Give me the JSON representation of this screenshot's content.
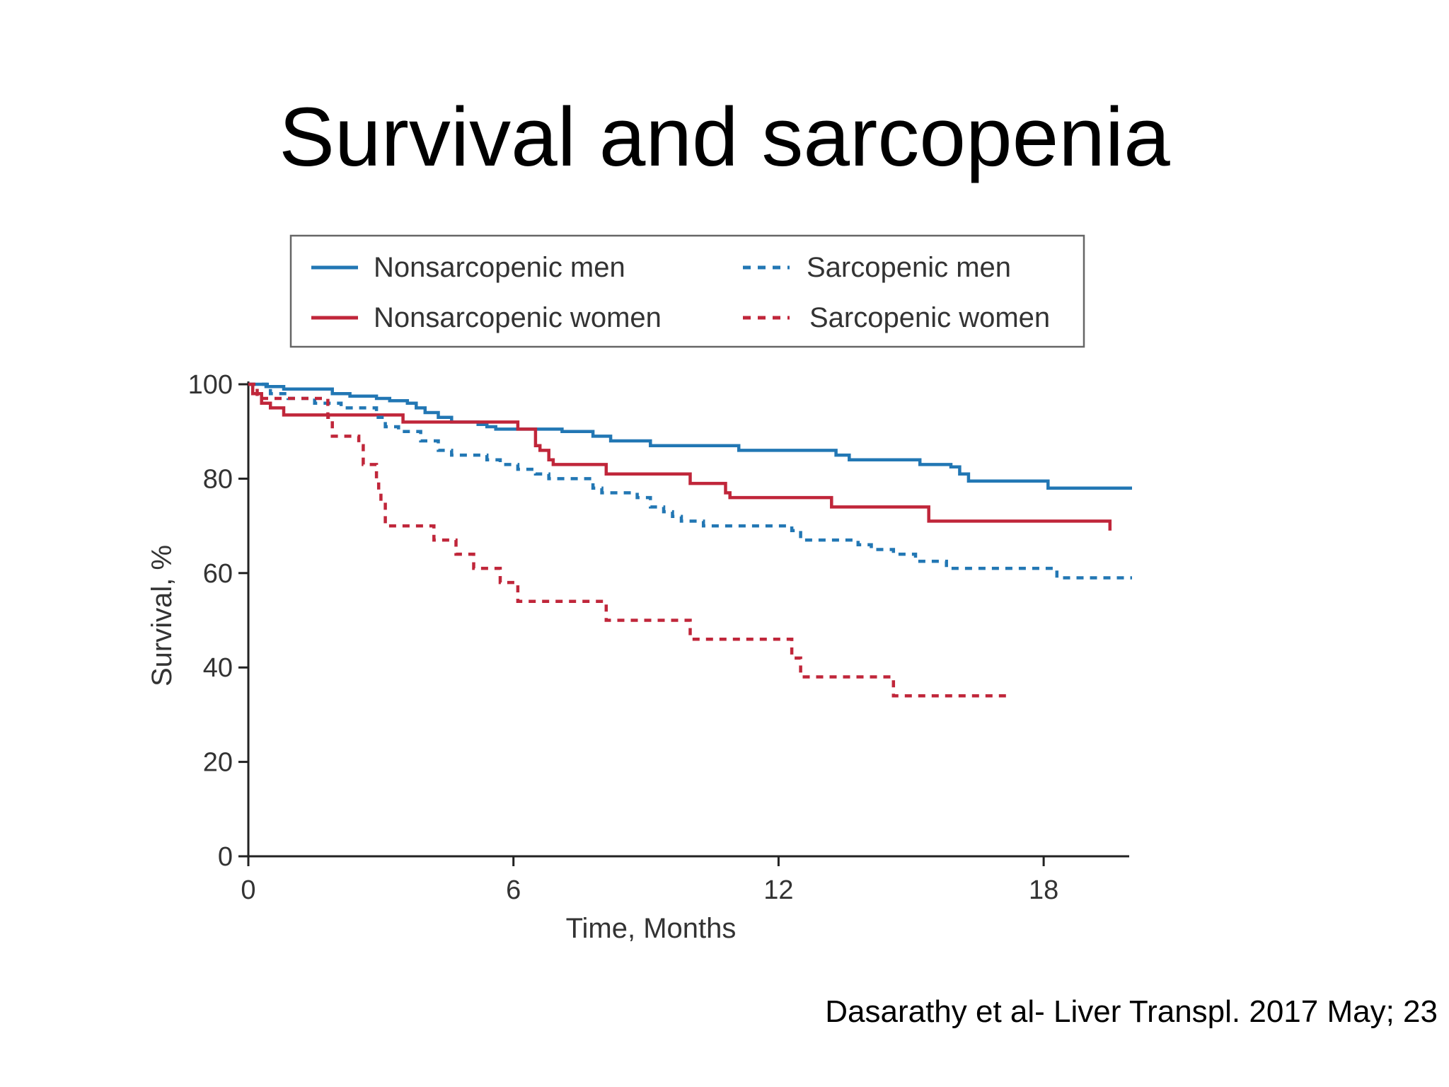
{
  "slide": {
    "title": "Survival and sarcopenia",
    "citation": "Dasarathy et al- Liver Transpl. 2017 May; 23"
  },
  "chart_data": {
    "type": "line",
    "subtype": "kaplan-meier-step",
    "xlabel": "Time, Months",
    "ylabel": "Survival, %",
    "xlim": [
      0,
      20
    ],
    "ylim": [
      0,
      100
    ],
    "xticks": [
      0,
      6,
      12,
      18
    ],
    "yticks": [
      0,
      20,
      40,
      60,
      80,
      100
    ],
    "grid": false,
    "legend_position": "top",
    "series": [
      {
        "name": "Nonsarcopenic men",
        "color": "#2277b4",
        "dash": "solid",
        "points": [
          [
            0,
            100
          ],
          [
            0.4,
            99.5
          ],
          [
            0.8,
            99
          ],
          [
            1.9,
            98
          ],
          [
            2.3,
            97.5
          ],
          [
            2.9,
            97
          ],
          [
            3.2,
            96.5
          ],
          [
            3.6,
            96
          ],
          [
            3.8,
            95
          ],
          [
            4,
            94
          ],
          [
            4.3,
            93
          ],
          [
            4.6,
            92
          ],
          [
            5.2,
            91.5
          ],
          [
            5.4,
            91
          ],
          [
            5.6,
            90.5
          ],
          [
            7.1,
            90
          ],
          [
            7.8,
            89
          ],
          [
            8.2,
            88
          ],
          [
            9.1,
            87
          ],
          [
            11.1,
            86
          ],
          [
            13.3,
            85
          ],
          [
            13.6,
            84
          ],
          [
            15.2,
            83
          ],
          [
            15.9,
            82.5
          ],
          [
            16.1,
            81
          ],
          [
            16.3,
            79.5
          ],
          [
            18.1,
            78
          ],
          [
            20,
            78
          ]
        ]
      },
      {
        "name": "Nonsarcopenic women",
        "color": "#c0263a",
        "dash": "solid",
        "points": [
          [
            0,
            100
          ],
          [
            0.1,
            98
          ],
          [
            0.3,
            96
          ],
          [
            0.5,
            95
          ],
          [
            0.8,
            93.5
          ],
          [
            3.5,
            92
          ],
          [
            6.1,
            90.5
          ],
          [
            6.5,
            87
          ],
          [
            6.6,
            86
          ],
          [
            6.8,
            84
          ],
          [
            6.9,
            83
          ],
          [
            8.1,
            81
          ],
          [
            10,
            79
          ],
          [
            10.8,
            77
          ],
          [
            10.9,
            76
          ],
          [
            13.2,
            74
          ],
          [
            15.4,
            71
          ],
          [
            19.5,
            71
          ],
          [
            19.5,
            69
          ]
        ]
      },
      {
        "name": "Sarcopenic men",
        "color": "#2277b4",
        "dash": "dashed",
        "points": [
          [
            0,
            100
          ],
          [
            0.5,
            98
          ],
          [
            0.9,
            97
          ],
          [
            1.5,
            96
          ],
          [
            2.1,
            95
          ],
          [
            2.9,
            93
          ],
          [
            3.1,
            91
          ],
          [
            3.4,
            90
          ],
          [
            3.9,
            88
          ],
          [
            4.3,
            86
          ],
          [
            4.6,
            85
          ],
          [
            5.4,
            84
          ],
          [
            5.7,
            83
          ],
          [
            6.1,
            82
          ],
          [
            6.5,
            81
          ],
          [
            6.8,
            80
          ],
          [
            7.8,
            78
          ],
          [
            8,
            77
          ],
          [
            8.8,
            76
          ],
          [
            9.1,
            74
          ],
          [
            9.4,
            73
          ],
          [
            9.6,
            72
          ],
          [
            9.8,
            71
          ],
          [
            10.3,
            70
          ],
          [
            12.3,
            69
          ],
          [
            12.5,
            67
          ],
          [
            13.8,
            66
          ],
          [
            14.1,
            65
          ],
          [
            14.6,
            64
          ],
          [
            15.1,
            62.5
          ],
          [
            15.8,
            61
          ],
          [
            18.3,
            59
          ],
          [
            20,
            59
          ]
        ]
      },
      {
        "name": "Sarcopenic women",
        "color": "#c0263a",
        "dash": "dashed",
        "points": [
          [
            0,
            100
          ],
          [
            0.2,
            97
          ],
          [
            1.8,
            93
          ],
          [
            1.9,
            89
          ],
          [
            2.5,
            87
          ],
          [
            2.6,
            83
          ],
          [
            2.9,
            80
          ],
          [
            2.95,
            77
          ],
          [
            3.0,
            75
          ],
          [
            3.1,
            70
          ],
          [
            4.2,
            67
          ],
          [
            4.7,
            64
          ],
          [
            5.1,
            61
          ],
          [
            5.7,
            58
          ],
          [
            6.1,
            54
          ],
          [
            8.1,
            50
          ],
          [
            10,
            46
          ],
          [
            12.3,
            42
          ],
          [
            12.5,
            38
          ],
          [
            14.6,
            34
          ],
          [
            17.2,
            34
          ]
        ]
      }
    ]
  }
}
